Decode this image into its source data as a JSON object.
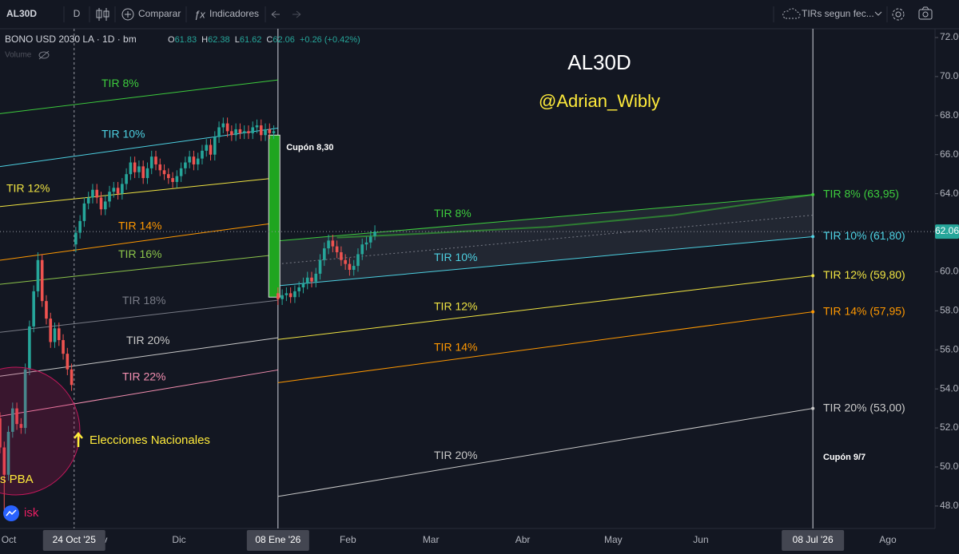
{
  "toolbar": {
    "symbol": "AL30D",
    "interval": "D",
    "compare": "Comparar",
    "indicators": "Indicadores",
    "layout": "TIRs segun fec..."
  },
  "chart_data": {
    "type": "candlestick",
    "title": "AL30D",
    "subtitle": "@Adrian_Wibly",
    "legend": "BONO USD 2030 LA · 1D · bm",
    "ohlc_letters": [
      "O",
      "H",
      "L",
      "C"
    ],
    "change": "+0.26 (+0.42%)",
    "volume_label": "Volume",
    "up_color": "#26a69a",
    "down_color": "#ef5350",
    "xlim": [
      0,
      222
    ],
    "ylim": [
      46.85,
      72.45
    ],
    "xticks": [
      {
        "value": 2.1,
        "label": "Oct"
      },
      {
        "value": 17.6,
        "label": "24 Oct '25",
        "highlight": true
      },
      {
        "value": 23.5,
        "label": "Nov"
      },
      {
        "value": 42.5,
        "label": "Dic"
      },
      {
        "value": 66,
        "label": "08 Ene '26",
        "highlight": true
      },
      {
        "value": 82.6,
        "label": "Feb"
      },
      {
        "value": 102.3,
        "label": "Mar"
      },
      {
        "value": 124.1,
        "label": "Abr"
      },
      {
        "value": 145.6,
        "label": "May"
      },
      {
        "value": 166.4,
        "label": "Jun"
      },
      {
        "value": 193,
        "label": "08 Jul '26",
        "highlight": true
      },
      {
        "value": 210.8,
        "label": "Ago"
      }
    ],
    "yticks": [
      {
        "value": 48,
        "label": "48.00"
      },
      {
        "value": 50,
        "label": "50.00"
      },
      {
        "value": 52,
        "label": "52.00"
      },
      {
        "value": 54,
        "label": "54.00"
      },
      {
        "value": 56,
        "label": "56.00"
      },
      {
        "value": 58,
        "label": "58.00"
      },
      {
        "value": 60,
        "label": "60.00"
      },
      {
        "value": 64,
        "label": "64.00"
      },
      {
        "value": 66,
        "label": "66.00"
      },
      {
        "value": 68,
        "label": "68.00"
      },
      {
        "value": 70,
        "label": "70.00"
      },
      {
        "value": 72,
        "label": "72.00"
      }
    ],
    "candles": {
      "x": [
        0,
        1,
        2,
        3,
        4,
        5,
        6,
        7,
        8,
        9,
        10,
        11,
        12,
        13,
        14,
        15,
        16,
        17,
        18,
        19,
        20,
        21,
        22,
        23,
        24,
        25,
        26,
        27,
        28,
        29,
        30,
        31,
        32,
        33,
        34,
        35,
        36,
        37,
        38,
        39,
        40,
        41,
        42,
        43,
        44,
        45,
        46,
        47,
        48,
        49,
        50,
        51,
        52,
        53,
        54,
        55,
        56,
        57,
        58,
        59,
        60,
        61,
        62,
        63,
        64,
        65,
        66,
        67,
        68,
        69,
        70,
        71,
        72,
        73,
        74,
        75,
        76,
        77,
        78,
        79,
        80,
        81,
        82,
        83,
        84,
        85,
        86,
        87,
        88,
        89
      ],
      "open": [
        52.5,
        51.0,
        49.6,
        51.8,
        53.0,
        52.2,
        52.0,
        55.0,
        57.2,
        59.0,
        60.6,
        58.5,
        57.6,
        56.4,
        57.1,
        56.5,
        55.8,
        55.0,
        61.4,
        62.0,
        62.6,
        63.5,
        63.8,
        64.2,
        63.8,
        63.2,
        63.6,
        64.1,
        64.3,
        64.0,
        64.5,
        65.0,
        65.6,
        65.1,
        65.4,
        64.8,
        65.3,
        65.9,
        65.5,
        65.2,
        65.0,
        64.8,
        64.6,
        64.9,
        65.3,
        65.6,
        65.9,
        65.5,
        65.8,
        66.2,
        66.5,
        66.0,
        66.9,
        67.4,
        67.6,
        67.2,
        67.0,
        67.3,
        67.1,
        67.2,
        67.1,
        67.4,
        67.5,
        67.0,
        67.3,
        67.1,
        58.9,
        58.6,
        58.8,
        58.9,
        58.7,
        59.0,
        59.2,
        59.4,
        59.7,
        59.5,
        59.9,
        60.6,
        61.2,
        61.6,
        61.3,
        61.0,
        60.6,
        60.4,
        60.1,
        60.3,
        60.9,
        61.4,
        61.5,
        61.83
      ],
      "high": [
        52.8,
        51.3,
        52.1,
        53.3,
        53.3,
        52.5,
        55.3,
        57.5,
        59.3,
        61.0,
        60.9,
        58.8,
        57.9,
        57.4,
        57.4,
        56.8,
        56.1,
        55.3,
        62.3,
        62.9,
        63.8,
        64.1,
        64.5,
        64.5,
        64.1,
        63.9,
        64.4,
        64.6,
        64.6,
        64.8,
        65.3,
        65.9,
        65.9,
        65.7,
        65.7,
        65.6,
        66.2,
        66.2,
        65.8,
        65.5,
        65.3,
        65.1,
        65.2,
        65.6,
        65.9,
        66.2,
        66.2,
        66.1,
        66.5,
        66.8,
        66.8,
        67.2,
        67.7,
        67.9,
        67.9,
        67.5,
        67.6,
        67.6,
        67.5,
        67.5,
        67.7,
        67.8,
        67.8,
        67.6,
        67.6,
        67.5,
        59.2,
        59.1,
        59.2,
        59.2,
        59.3,
        59.5,
        59.7,
        60.0,
        60.0,
        60.2,
        60.9,
        61.5,
        61.9,
        61.9,
        61.6,
        61.3,
        60.9,
        60.7,
        60.6,
        61.2,
        61.7,
        61.8,
        62.1,
        62.38
      ],
      "low": [
        50.7,
        47.8,
        49.3,
        51.5,
        51.9,
        51.7,
        51.7,
        54.7,
        56.9,
        58.7,
        58.2,
        57.3,
        56.1,
        56.1,
        56.2,
        55.5,
        54.7,
        53.9,
        61.0,
        61.7,
        62.3,
        63.2,
        63.5,
        63.5,
        62.9,
        62.9,
        63.3,
        63.8,
        63.7,
        63.7,
        64.2,
        64.7,
        64.8,
        64.8,
        64.5,
        64.5,
        65.0,
        65.2,
        64.9,
        64.7,
        64.5,
        64.3,
        64.3,
        64.6,
        65.0,
        65.3,
        65.2,
        65.2,
        65.5,
        65.9,
        65.7,
        65.7,
        66.6,
        67.1,
        66.9,
        66.7,
        66.7,
        66.8,
        66.8,
        66.8,
        66.8,
        67.1,
        66.7,
        66.7,
        66.8,
        66.8,
        58.3,
        58.3,
        58.5,
        58.4,
        58.4,
        58.7,
        58.9,
        59.1,
        59.2,
        59.2,
        59.6,
        60.3,
        60.9,
        61.0,
        60.7,
        60.3,
        60.1,
        59.8,
        59.8,
        60.0,
        60.6,
        61.1,
        61.2,
        61.62
      ],
      "close": [
        51.0,
        49.6,
        51.8,
        53.0,
        52.2,
        52.0,
        55.0,
        57.2,
        59.0,
        60.6,
        58.5,
        57.6,
        56.4,
        57.1,
        56.5,
        55.8,
        55.0,
        54.2,
        62.0,
        62.6,
        63.5,
        63.8,
        64.2,
        63.8,
        63.2,
        63.6,
        64.1,
        64.3,
        64.0,
        64.5,
        65.0,
        65.6,
        65.1,
        65.4,
        64.8,
        65.3,
        65.9,
        65.5,
        65.2,
        65.0,
        64.8,
        64.6,
        64.9,
        65.3,
        65.6,
        65.9,
        65.5,
        65.8,
        66.2,
        66.5,
        66.0,
        66.9,
        67.4,
        67.6,
        67.2,
        67.0,
        67.3,
        67.1,
        67.2,
        67.1,
        67.4,
        67.5,
        67.0,
        67.3,
        67.1,
        67.2,
        58.6,
        58.8,
        58.9,
        58.7,
        59.0,
        59.2,
        59.4,
        59.7,
        59.5,
        59.9,
        60.6,
        61.2,
        61.6,
        61.3,
        61.0,
        60.6,
        60.4,
        60.1,
        60.3,
        60.9,
        61.4,
        61.5,
        61.8,
        62.06
      ]
    },
    "coupon": {
      "label": "Cupón 8,30",
      "x": 63.8,
      "from": 67.0,
      "to": 58.7,
      "color": "#1fa51f"
    },
    "tir_left": [
      {
        "name": "TIR 8%",
        "color": "#3dcc3d",
        "x": [
          0,
          66
        ],
        "values": [
          68.1,
          69.83
        ]
      },
      {
        "name": "TIR 10%",
        "color": "#4dd0e1",
        "x": [
          0,
          66
        ],
        "values": [
          65.39,
          67.36
        ]
      },
      {
        "name": "TIR 12%",
        "color": "#f0e442",
        "x": [
          0,
          66
        ],
        "values": [
          63.34,
          64.82
        ]
      },
      {
        "name": "TIR 14%",
        "color": "#ff9800",
        "x": [
          0,
          66
        ],
        "values": [
          60.59,
          62.52
        ]
      },
      {
        "name": "TIR 16%",
        "color": "#8bc34a",
        "x": [
          0,
          66
        ],
        "values": [
          59.36,
          60.88
        ]
      },
      {
        "name": "TIR 18%",
        "color": "#787b86",
        "x": [
          0,
          66
        ],
        "values": [
          56.9,
          58.54
        ]
      },
      {
        "name": "TIR 20%",
        "color": "#c8c8c8",
        "x": [
          0,
          66
        ],
        "values": [
          54.65,
          56.62
        ]
      },
      {
        "name": "TIR 22%",
        "color": "#f48fb1",
        "x": [
          0,
          66
        ],
        "values": [
          52.6,
          54.97
        ]
      }
    ],
    "tir_right": [
      {
        "name": "TIR 8%",
        "color": "#3dcc3d",
        "x": [
          66,
          193
        ],
        "values": [
          61.58,
          63.95
        ],
        "end_label": "TIR 8% (63,95)"
      },
      {
        "name": "TIR 10%",
        "color": "#4dd0e1",
        "x": [
          66,
          193
        ],
        "values": [
          59.28,
          61.8
        ],
        "end_label": "TIR 10% (61,80)"
      },
      {
        "name": "TIR 12%",
        "color": "#f0e442",
        "x": [
          66,
          193
        ],
        "values": [
          56.53,
          59.8
        ],
        "end_label": "TIR 12% (59,80)"
      },
      {
        "name": "TIR 14%",
        "color": "#ff9800",
        "x": [
          66,
          193
        ],
        "values": [
          54.32,
          57.95
        ],
        "end_label": "TIR 14% (57,95)"
      },
      {
        "name": "TIR 20%",
        "color": "#c8c8c8",
        "x": [
          66,
          193
        ],
        "values": [
          48.49,
          53.0
        ],
        "end_label": "TIR 20% (53,00)"
      }
    ],
    "projection": {
      "color": "#2e7d32",
      "x": [
        80,
        100,
        130,
        160,
        193
      ],
      "values": [
        61.75,
        61.95,
        62.3,
        62.9,
        63.95
      ]
    },
    "midline": {
      "color": "#787b86",
      "x": [
        66,
        193
      ],
      "values": [
        60.4,
        62.9
      ]
    },
    "annotations": [
      "Elecciones Nacionales",
      "s PBA",
      "isk",
      "Cupón 9/7"
    ]
  }
}
